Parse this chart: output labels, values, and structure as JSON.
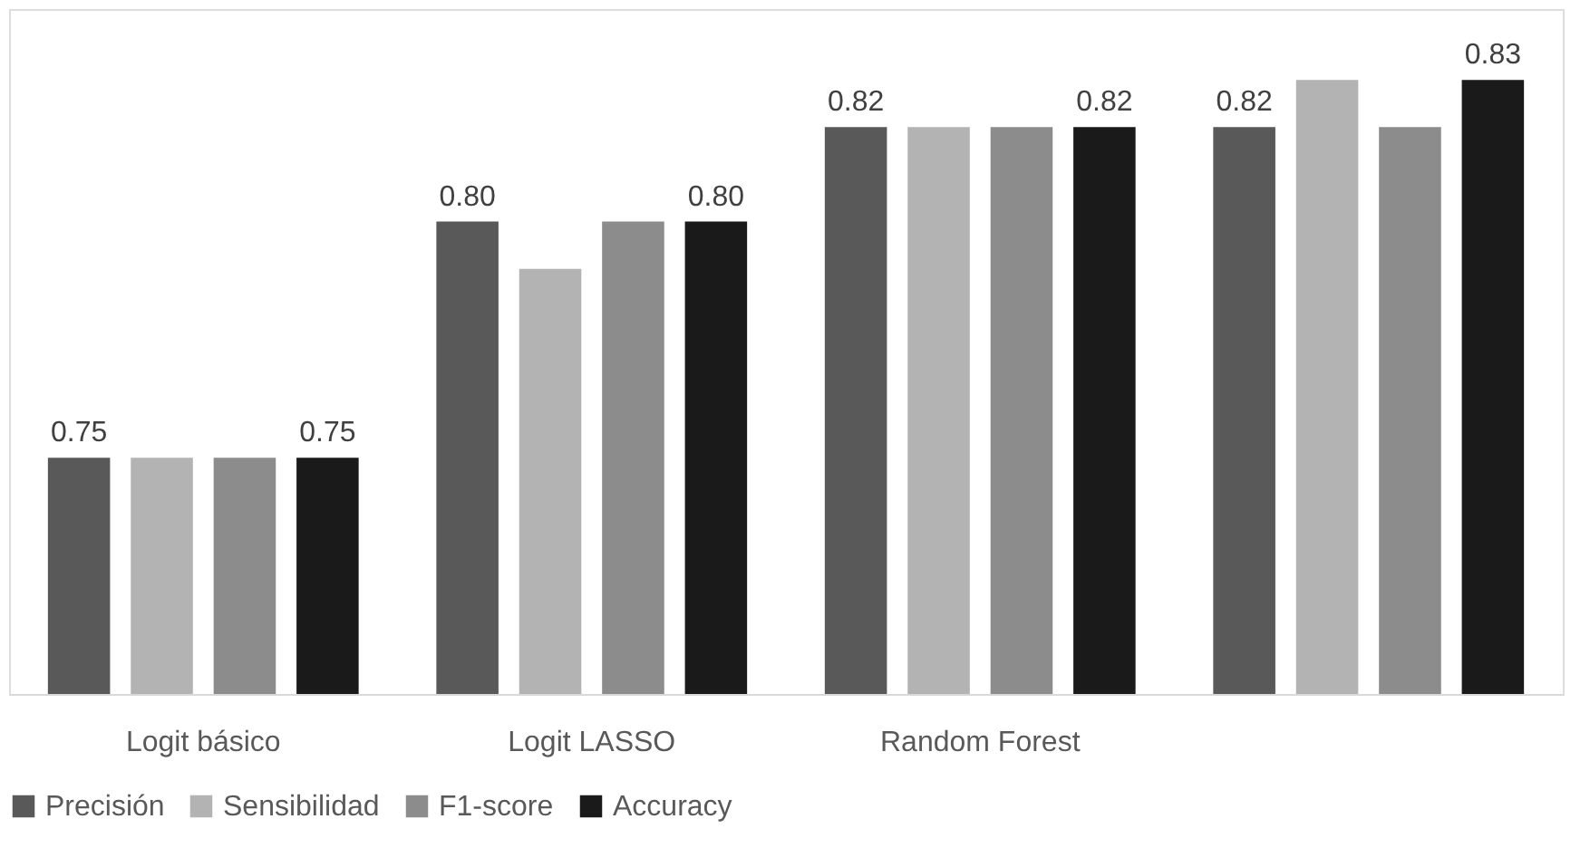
{
  "chart_data": {
    "type": "bar",
    "categories": [
      "Logit básico",
      "Logit LASSO",
      "Random Forest",
      null
    ],
    "series": [
      {
        "name": "Precisión",
        "color": "#595959",
        "values": [
          0.75,
          0.8,
          0.82,
          0.82
        ],
        "value_labels": [
          "0.75",
          "0.80",
          "0.82",
          "0.82"
        ]
      },
      {
        "name": "Sensibilidad",
        "color": "#b3b3b3",
        "values": [
          0.75,
          0.79,
          0.82,
          0.83
        ]
      },
      {
        "name": "F1-score",
        "color": "#8c8c8c",
        "values": [
          0.75,
          0.8,
          0.82,
          0.82
        ]
      },
      {
        "name": "Accuracy",
        "color": "#1a1a1a",
        "values": [
          0.75,
          0.8,
          0.82,
          0.83
        ],
        "value_labels": [
          "0.75",
          "0.80",
          "0.82",
          "0.83"
        ]
      }
    ],
    "ylim": [
      0.7,
      0.845
    ],
    "tick_labels": "x",
    "grid": false,
    "legend": "bottom"
  }
}
